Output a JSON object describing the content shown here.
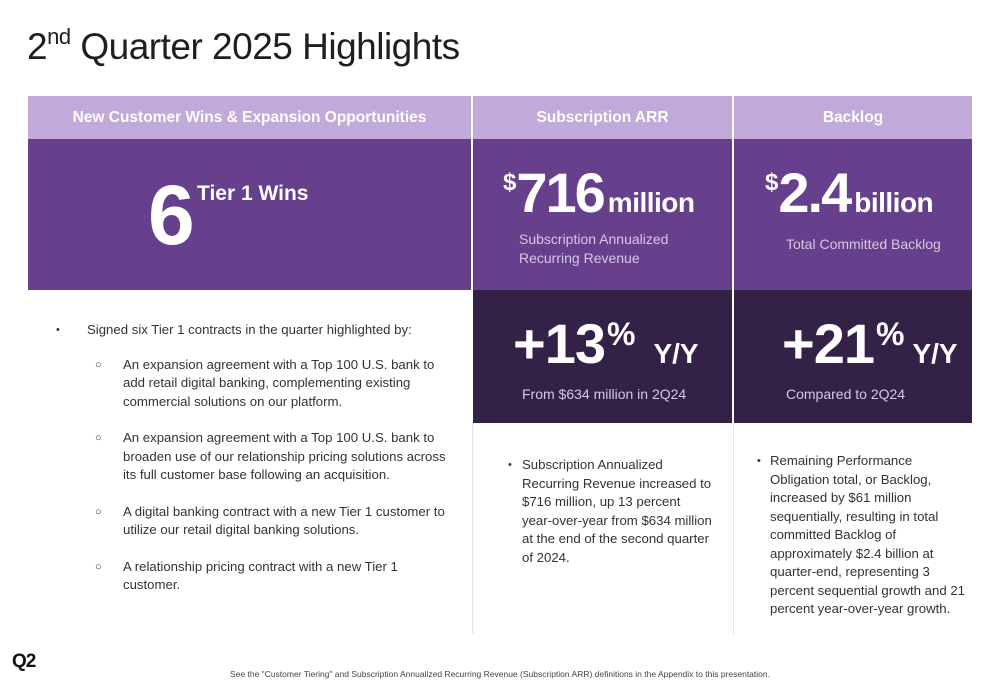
{
  "slide": {
    "title_prefix": "2",
    "title_sup": "nd",
    "title_rest": " Quarter 2025 Highlights"
  },
  "columns": {
    "wins": {
      "header": "New Customer Wins & Expansion Opportunities",
      "big_number": "6",
      "big_label": "Tier 1 Wins",
      "bullet_main": "Signed six Tier 1 contracts in the quarter highlighted by:",
      "sub_bullets": [
        "An expansion agreement with a Top 100 U.S. bank to add retail digital banking, complementing existing commercial solutions on our platform.",
        "An expansion agreement with a Top 100 U.S. bank to broaden use of our relationship pricing solutions across its full customer base following an acquisition.",
        "A digital banking contract with a new Tier 1 customer to utilize our retail digital banking solutions.",
        "A relationship pricing contract with a new Tier 1 customer."
      ]
    },
    "arr": {
      "header": "Subscription ARR",
      "currency": "$",
      "amount": "716",
      "unit": "million",
      "subtitle_line1": "Subscription Annualized",
      "subtitle_line2": "Recurring Revenue",
      "growth": "+13",
      "growth_symbol": "%",
      "growth_suffix": "Y/Y",
      "growth_note": "From $634 million in 2Q24",
      "bullet": "Subscription Annualized Recurring Revenue increased to $716 million, up 13 percent year-over-year from $634 million at the end of the second quarter of 2024."
    },
    "backlog": {
      "header": "Backlog",
      "currency": "$",
      "amount": "2.4",
      "unit": "billion",
      "subtitle": "Total Committed Backlog",
      "growth": "+21",
      "growth_symbol": "%",
      "growth_suffix": "Y/Y",
      "growth_note": "Compared to 2Q24",
      "bullet": "Remaining Performance Obligation total, or Backlog, increased by $61 million sequentially, resulting in total committed Backlog of approximately $2.4 billion at quarter-end, representing 3 percent sequential growth and 21 percent year-over-year growth."
    }
  },
  "footer": {
    "logo": "Q2",
    "footnote": "See the \"Customer Tiering\" and Subscription Annualized Recurring Revenue (Subscription ARR) definitions in the Appendix to this presentation."
  },
  "colors": {
    "header_lavender": "#c1a9d9",
    "purple": "#66408c",
    "dark_purple": "#332148"
  }
}
